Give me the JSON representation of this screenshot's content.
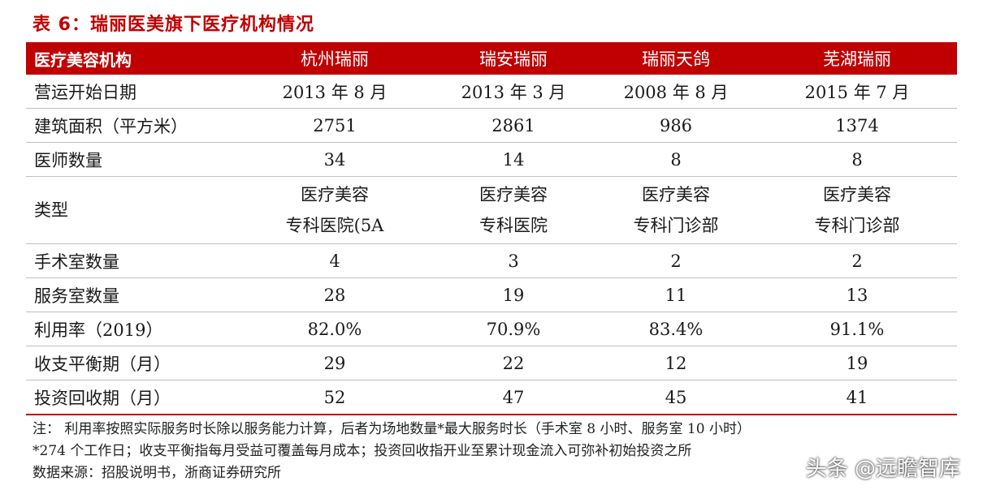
{
  "title": "表 6：瑞丽医美旗下医疗机构情况",
  "header": [
    "医疗美容机构",
    "杭州瑞丽",
    "瑞安瑞丽",
    "瑞丽天鸽",
    "芜湖瑞丽"
  ],
  "rows": [
    {
      "label": "营运开始日期",
      "values": [
        "2013 年 8 月",
        "2013 年 3 月",
        "2008 年 8 月",
        "2015 年 7 月"
      ]
    },
    {
      "label": "建筑面积（平方米）",
      "values": [
        "2751",
        "2861",
        "986",
        "1374"
      ]
    },
    {
      "label": "医师数量",
      "values": [
        "34",
        "14",
        "8",
        "8"
      ]
    },
    {
      "label": "类型",
      "line1": [
        "医疗美容",
        "医疗美容",
        "医疗美容",
        "医疗美容"
      ],
      "line2": [
        "专科医院(5A",
        "专科医院",
        "专科门诊部",
        "专科门诊部"
      ]
    },
    {
      "label": "手术室数量",
      "values": [
        "4",
        "3",
        "2",
        "2"
      ]
    },
    {
      "label": "服务室数量",
      "values": [
        "28",
        "19",
        "11",
        "13"
      ]
    },
    {
      "label": "利用率（2019）",
      "values": [
        "82.0%",
        "70.9%",
        "83.4%",
        "91.1%"
      ]
    },
    {
      "label": "收支平衡期（月）",
      "values": [
        "29",
        "22",
        "12",
        "19"
      ]
    },
    {
      "label": "投资回收期（月）",
      "values": [
        "52",
        "47",
        "45",
        "41"
      ]
    }
  ],
  "notes": {
    "line1": "注：  利用率按照实际服务时长除以服务能力计算，后者为场地数量*最大服务时长（手术室 8 小时、服务室 10 小时）",
    "line2": "*274 个工作日；收支平衡指每月受益可覆盖每月成本；投资回收指开业至累计现金流入可弥补初始投资之所",
    "line3": "数据来源：招股说明书，浙商证券研究所"
  },
  "watermark": "头条 @远瞻智库"
}
